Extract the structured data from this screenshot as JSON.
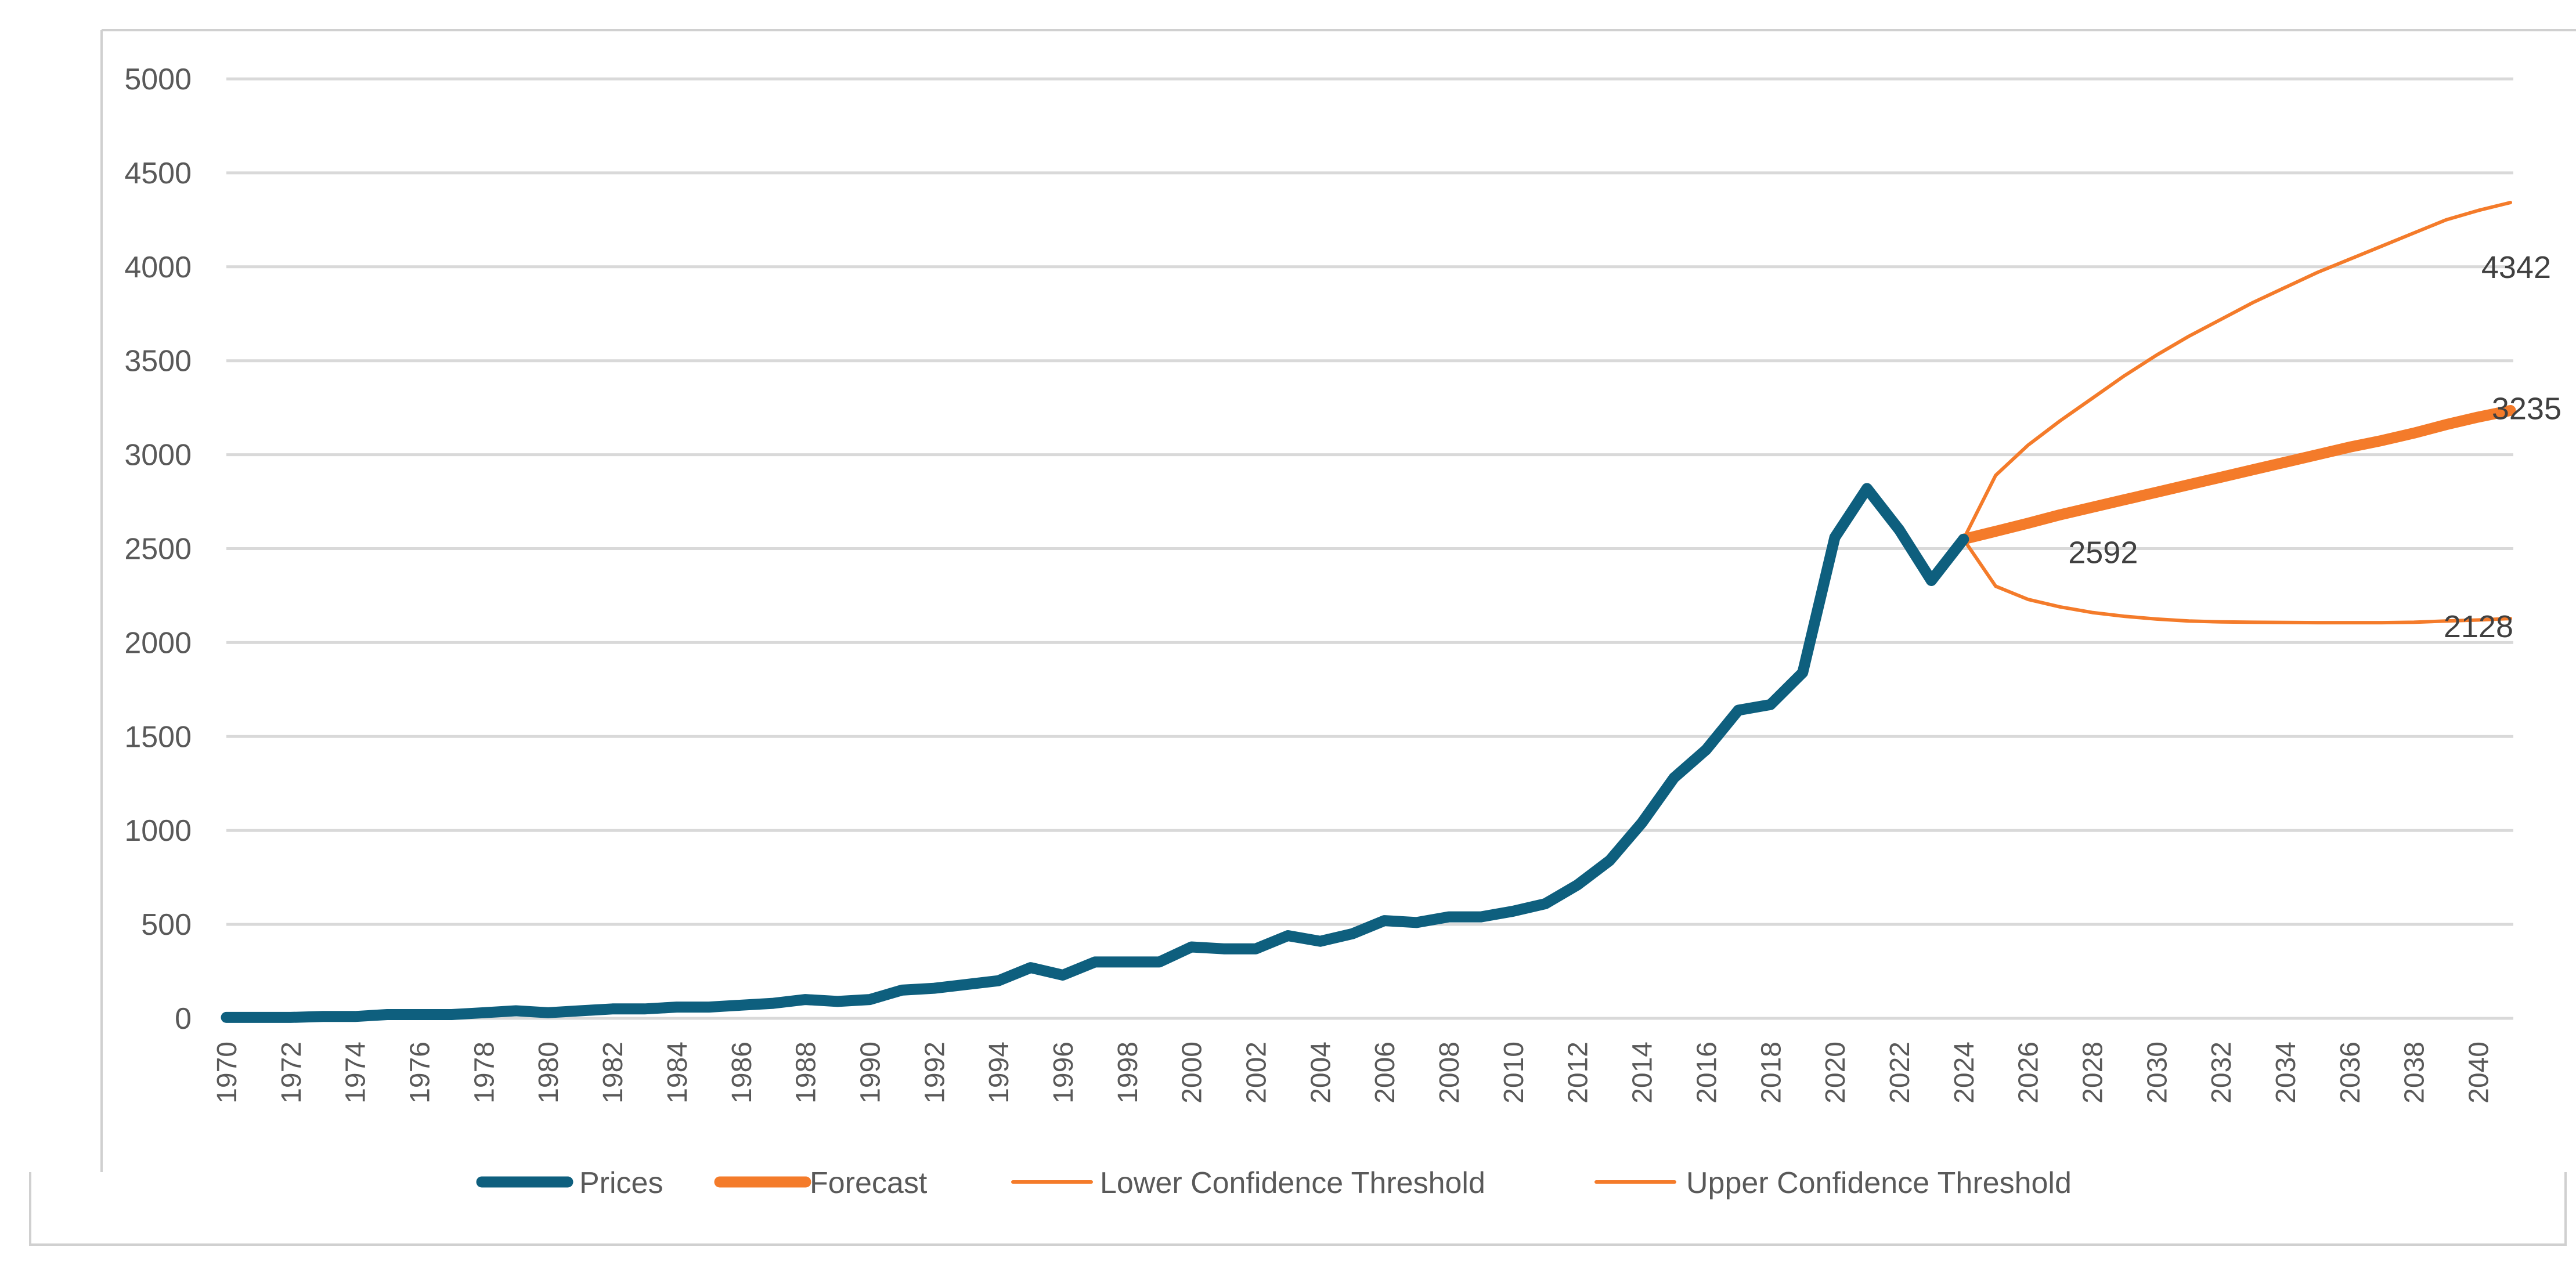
{
  "chart_data": {
    "type": "line",
    "title": "",
    "xlabel": "",
    "ylabel": "",
    "xlim": [
      1970,
      2041
    ],
    "ylim": [
      0,
      5000
    ],
    "y_ticks": [
      "0",
      "500",
      "1000",
      "1500",
      "2000",
      "2500",
      "3000",
      "3500",
      "4000",
      "4500",
      "5000"
    ],
    "x_ticks": [
      "1970",
      "1972",
      "1974",
      "1976",
      "1978",
      "1980",
      "1982",
      "1984",
      "1986",
      "1988",
      "1990",
      "1992",
      "1994",
      "1996",
      "1998",
      "2000",
      "2002",
      "2004",
      "2006",
      "2008",
      "2010",
      "2012",
      "2014",
      "2016",
      "2018",
      "2020",
      "2022",
      "2024",
      "2026",
      "2028",
      "2030",
      "2032",
      "2034",
      "2036",
      "2038",
      "2040"
    ],
    "grid": true,
    "legend_position": "bottom",
    "series": [
      {
        "name": "Prices",
        "color": "#0e5f7e",
        "width": "thick",
        "x": [
          1970,
          1971,
          1972,
          1973,
          1974,
          1975,
          1976,
          1977,
          1978,
          1979,
          1980,
          1981,
          1982,
          1983,
          1984,
          1985,
          1986,
          1987,
          1988,
          1989,
          1990,
          1991,
          1992,
          1993,
          1994,
          1995,
          1996,
          1997,
          1998,
          1999,
          2000,
          2001,
          2002,
          2003,
          2004,
          2005,
          2006,
          2007,
          2008,
          2009,
          2010,
          2011,
          2012,
          2013,
          2014,
          2015,
          2016,
          2017,
          2018,
          2019,
          2020,
          2021,
          2022,
          2023,
          2024
        ],
        "values": [
          5,
          5,
          5,
          10,
          10,
          20,
          20,
          20,
          30,
          40,
          30,
          40,
          50,
          50,
          60,
          60,
          70,
          80,
          100,
          90,
          100,
          150,
          160,
          180,
          200,
          270,
          230,
          300,
          300,
          300,
          380,
          370,
          370,
          440,
          410,
          450,
          520,
          510,
          540,
          540,
          570,
          610,
          710,
          840,
          1040,
          1280,
          1430,
          1640,
          1670,
          1840,
          2560,
          2820,
          2600,
          2330,
          2550
        ]
      },
      {
        "name": "Forecast",
        "color": "#f47b2a",
        "width": "thick",
        "x": [
          2024,
          2025,
          2026,
          2027,
          2028,
          2029,
          2030,
          2031,
          2032,
          2033,
          2034,
          2035,
          2036,
          2037,
          2038,
          2039,
          2040,
          2041
        ],
        "values": [
          2550,
          2592,
          2635,
          2680,
          2720,
          2760,
          2800,
          2840,
          2880,
          2920,
          2960,
          3000,
          3040,
          3075,
          3115,
          3160,
          3200,
          3235
        ]
      },
      {
        "name": "Lower Confidence Threshold",
        "color": "#f47b2a",
        "width": "thin",
        "x": [
          2024,
          2025,
          2026,
          2027,
          2028,
          2029,
          2030,
          2031,
          2032,
          2033,
          2034,
          2035,
          2036,
          2037,
          2038,
          2039,
          2040,
          2041
        ],
        "values": [
          2550,
          2300,
          2230,
          2190,
          2160,
          2140,
          2125,
          2115,
          2110,
          2108,
          2107,
          2106,
          2106,
          2106,
          2108,
          2115,
          2120,
          2128
        ]
      },
      {
        "name": "Upper Confidence Threshold",
        "color": "#f47b2a",
        "width": "thin",
        "x": [
          2024,
          2025,
          2026,
          2027,
          2028,
          2029,
          2030,
          2031,
          2032,
          2033,
          2034,
          2035,
          2036,
          2037,
          2038,
          2039,
          2040,
          2041
        ],
        "values": [
          2550,
          2890,
          3050,
          3180,
          3300,
          3420,
          3530,
          3630,
          3720,
          3810,
          3890,
          3970,
          4040,
          4110,
          4180,
          4250,
          4300,
          4342
        ]
      }
    ],
    "annotations": [
      {
        "text": "4342",
        "x": 2041,
        "y": 4342,
        "anchor": "above"
      },
      {
        "text": "3235",
        "x": 2041,
        "y": 3235,
        "anchor": "below"
      },
      {
        "text": "2592",
        "x": 2025,
        "y": 2592,
        "anchor": "below-right"
      },
      {
        "text": "2128",
        "x": 2041,
        "y": 2128,
        "anchor": "below"
      }
    ]
  }
}
